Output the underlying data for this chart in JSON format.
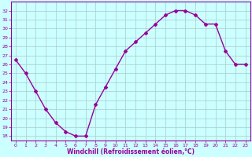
{
  "x": [
    0,
    1,
    2,
    3,
    4,
    5,
    6,
    7,
    8,
    9,
    10,
    11,
    12,
    13,
    14,
    15,
    16,
    17,
    18,
    19,
    20,
    21,
    22,
    23
  ],
  "y": [
    26.5,
    25.0,
    23.0,
    21.0,
    19.5,
    18.5,
    18.0,
    18.0,
    21.5,
    23.5,
    25.5,
    27.5,
    28.5,
    29.5,
    30.5,
    31.5,
    32.0,
    32.0,
    31.5,
    30.5,
    30.5,
    27.5,
    26.0,
    26.0
  ],
  "xlim": [
    -0.5,
    23.5
  ],
  "ylim": [
    17.5,
    33
  ],
  "yticks": [
    18,
    19,
    20,
    21,
    22,
    23,
    24,
    25,
    26,
    27,
    28,
    29,
    30,
    31,
    32
  ],
  "xticks": [
    0,
    1,
    2,
    3,
    4,
    5,
    6,
    7,
    8,
    9,
    10,
    11,
    12,
    13,
    14,
    15,
    16,
    17,
    18,
    19,
    20,
    21,
    22,
    23
  ],
  "line_color": "#990099",
  "marker": "D",
  "marker_size": 2,
  "bg_color": "#ccffff",
  "grid_color": "#aacccc",
  "xlabel": "Windchill (Refroidissement éolien,°C)",
  "xlabel_color": "#990099",
  "tick_color": "#990099",
  "spine_color": "#990099",
  "linewidth": 1.0
}
